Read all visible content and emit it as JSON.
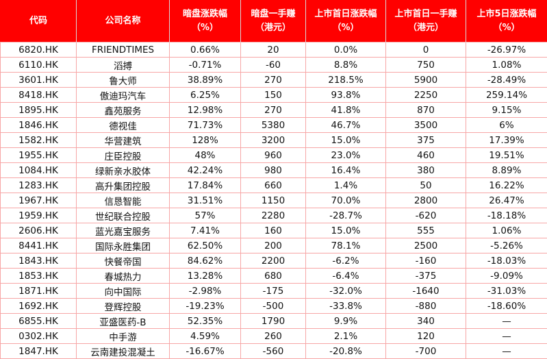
{
  "colors": {
    "header_bg": "#ff0000",
    "header_text": "#ffffff",
    "grid": "#f7a6a6",
    "outer_border": "#ff0000"
  },
  "headers": [
    {
      "line1": "代码",
      "line2": ""
    },
    {
      "line1": "公司名称",
      "line2": ""
    },
    {
      "line1": "暗盘涨跌幅",
      "line2": "（%）"
    },
    {
      "line1": "暗盘一手赚",
      "line2": "（港元）"
    },
    {
      "line1": "上市首日涨跌幅",
      "line2": "（%）"
    },
    {
      "line1": "上市首日一手赚",
      "line2": "（港元）"
    },
    {
      "line1": "上市5日涨跌幅",
      "line2": "（%）"
    }
  ],
  "rows": [
    [
      "6820.HK",
      "FRIENDTIMES",
      "0.66%",
      "20",
      "0.0%",
      "0",
      "-26.97%"
    ],
    [
      "6110.HK",
      "滔搏",
      "-0.71%",
      "-60",
      "8.8%",
      "750",
      "1.08%"
    ],
    [
      "3601.HK",
      "鲁大师",
      "38.89%",
      "270",
      "218.5%",
      "5900",
      "-28.49%"
    ],
    [
      "8418.HK",
      "傲迪玛汽车",
      "6.25%",
      "150",
      "93.8%",
      "2250",
      "259.14%"
    ],
    [
      "1895.HK",
      "鑫苑服务",
      "12.98%",
      "270",
      "41.8%",
      "870",
      "9.15%"
    ],
    [
      "1846.HK",
      "德视佳",
      "71.73%",
      "5380",
      "46.7%",
      "3500",
      "6%"
    ],
    [
      "1582.HK",
      "华营建筑",
      "128%",
      "3200",
      "15.0%",
      "375",
      "17.39%"
    ],
    [
      "1955.HK",
      "庄臣控股",
      "48%",
      "960",
      "23.0%",
      "460",
      "19.51%"
    ],
    [
      "1084.HK",
      "绿新亲水胶体",
      "42.24%",
      "980",
      "16.4%",
      "380",
      "8.89%"
    ],
    [
      "1283.HK",
      "高升集团控股",
      "17.84%",
      "660",
      "1.4%",
      "50",
      "16.22%"
    ],
    [
      "1967.HK",
      "信恳智能",
      "31.51%",
      "1150",
      "70.0%",
      "2800",
      "26.47%"
    ],
    [
      "1959.HK",
      "世纪联合控股",
      "57%",
      "2280",
      "-28.7%",
      "-620",
      "-18.18%"
    ],
    [
      "2606.HK",
      "蓝光嘉宝服务",
      "7.41%",
      "160",
      "15.0%",
      "555",
      "1.06%"
    ],
    [
      "8441.HK",
      "国际永胜集团",
      "62.50%",
      "200",
      "78.1%",
      "2500",
      "-5.26%"
    ],
    [
      "1843.HK",
      "快餐帝国",
      "84.62%",
      "2200",
      "-6.2%",
      "-160",
      "-18.03%"
    ],
    [
      "1853.HK",
      "春城热力",
      "13.28%",
      "680",
      "-6.4%",
      "-375",
      "-9.09%"
    ],
    [
      "1871.HK",
      "向中国际",
      "-2.98%",
      "-175",
      "-32.0%",
      "-1640",
      "-31.03%"
    ],
    [
      "1692.HK",
      "登辉控股",
      "-19.23%",
      "-500",
      "-33.8%",
      "-880",
      "-18.60%"
    ],
    [
      "6855.HK",
      "亚盛医药-B",
      "52.35%",
      "1790",
      "9.9%",
      "340",
      "—"
    ],
    [
      "0302.HK",
      "中手游",
      "4.59%",
      "260",
      "2.1%",
      "120",
      "—"
    ],
    [
      "1847.HK",
      "云南建投混凝土",
      "-16.67%",
      "-560",
      "-20.8%",
      "-700",
      "—"
    ]
  ]
}
